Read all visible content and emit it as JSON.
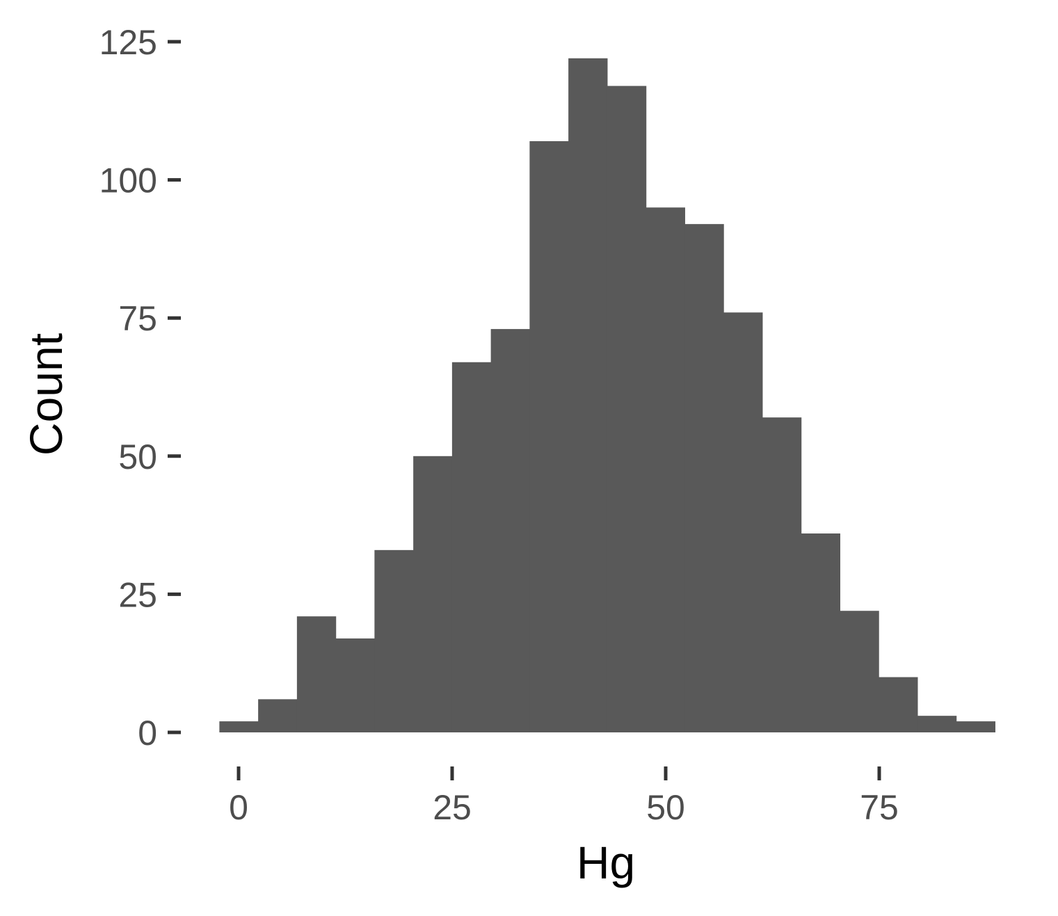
{
  "chart_data": {
    "type": "bar",
    "subtype": "histogram",
    "xlabel": "Hg",
    "ylabel": "Count",
    "xlim": [
      -4.6,
      91.7
    ],
    "ylim": [
      0,
      125
    ],
    "x_ticks": [
      0,
      25,
      50,
      75
    ],
    "y_ticks": [
      0,
      25,
      50,
      75,
      100,
      125
    ],
    "bin_width": 4.54,
    "bins": [
      {
        "x0": -2.25,
        "x1": 2.29,
        "count": 2
      },
      {
        "x0": 2.29,
        "x1": 6.83,
        "count": 6
      },
      {
        "x0": 6.83,
        "x1": 11.37,
        "count": 21
      },
      {
        "x0": 11.37,
        "x1": 15.91,
        "count": 17
      },
      {
        "x0": 15.91,
        "x1": 20.45,
        "count": 33
      },
      {
        "x0": 20.45,
        "x1": 24.99,
        "count": 50
      },
      {
        "x0": 24.99,
        "x1": 29.53,
        "count": 67
      },
      {
        "x0": 29.53,
        "x1": 34.07,
        "count": 73
      },
      {
        "x0": 34.07,
        "x1": 38.61,
        "count": 107
      },
      {
        "x0": 38.61,
        "x1": 43.15,
        "count": 122
      },
      {
        "x0": 43.15,
        "x1": 47.69,
        "count": 117
      },
      {
        "x0": 47.69,
        "x1": 52.23,
        "count": 95
      },
      {
        "x0": 52.23,
        "x1": 56.77,
        "count": 92
      },
      {
        "x0": 56.77,
        "x1": 61.31,
        "count": 76
      },
      {
        "x0": 61.31,
        "x1": 65.85,
        "count": 57
      },
      {
        "x0": 65.85,
        "x1": 70.39,
        "count": 36
      },
      {
        "x0": 70.39,
        "x1": 74.93,
        "count": 22
      },
      {
        "x0": 74.93,
        "x1": 79.47,
        "count": 10
      },
      {
        "x0": 79.47,
        "x1": 84.01,
        "count": 3
      },
      {
        "x0": 84.01,
        "x1": 88.55,
        "count": 2
      }
    ],
    "bar_color": "#595959",
    "tick_color": "#333333",
    "tick_label_color": "#4d4d4d",
    "background": "#ffffff",
    "grid": false,
    "legend": "none"
  }
}
